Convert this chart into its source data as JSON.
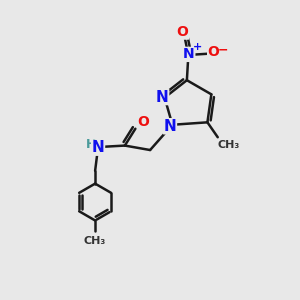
{
  "background_color": "#e8e8e8",
  "bond_color": "#1a1a1a",
  "bond_width": 1.8,
  "atom_colors": {
    "N": "#1010ee",
    "O": "#ee1010",
    "C": "#1a1a1a",
    "H": "#4a9a9a"
  },
  "font_size": 10,
  "figsize": [
    3.0,
    3.0
  ],
  "dpi": 100
}
